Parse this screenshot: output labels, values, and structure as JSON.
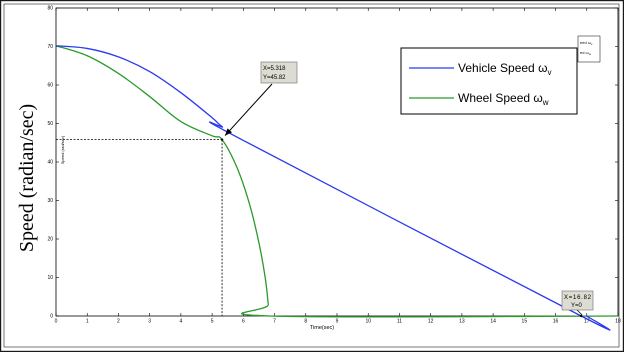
{
  "chart_data": {
    "type": "line",
    "title": "",
    "xlabel": "Time(sec)",
    "ylabel": "Speed (radian/sec)",
    "ylabel_small": "Speed (rad/sec)",
    "xlim": [
      0,
      18
    ],
    "ylim": [
      0,
      80
    ],
    "xticks": [
      0,
      1,
      2,
      3,
      4,
      5,
      6,
      7,
      8,
      9,
      10,
      11,
      12,
      13,
      14,
      15,
      16,
      17,
      18
    ],
    "yticks": [
      0,
      10,
      20,
      30,
      40,
      50,
      60,
      70,
      80
    ],
    "grid": false,
    "legend_position": "top-right",
    "series": [
      {
        "name": "Vehicle Speed ω",
        "name_sub": "v",
        "color": "#2a3af0",
        "x": [
          0,
          1,
          2,
          3,
          4,
          5,
          5.318,
          6,
          16.82,
          17
        ],
        "y": [
          70.2,
          69.5,
          67.3,
          63.5,
          58,
          51.5,
          49.2,
          45.6,
          0,
          0
        ]
      },
      {
        "name": "Wheel Speed ω",
        "name_sub": "w",
        "color": "#2a9a2a",
        "x": [
          0,
          1,
          2,
          3,
          4,
          5,
          5.318,
          5.8,
          6.2,
          6.5,
          6.7,
          6.8,
          6.85,
          18
        ],
        "y": [
          70.2,
          67.6,
          63,
          57,
          50.5,
          46.8,
          45.82,
          38.5,
          29,
          19,
          10,
          3,
          0,
          0
        ]
      }
    ],
    "annotations": [
      {
        "line1": "X=5.318",
        "line2": "Y=45.82",
        "x": 5.318,
        "y": 45.82
      },
      {
        "line1": "X=16.82",
        "line2": "Y=0",
        "x": 16.82,
        "y": 0
      }
    ],
    "mini_legend": [
      "eed ω",
      "ed ω"
    ],
    "mini_legend_subs": [
      "v",
      "w"
    ],
    "colors": {
      "vehicle": "#2a3af0",
      "wheel": "#2a9a2a"
    }
  }
}
